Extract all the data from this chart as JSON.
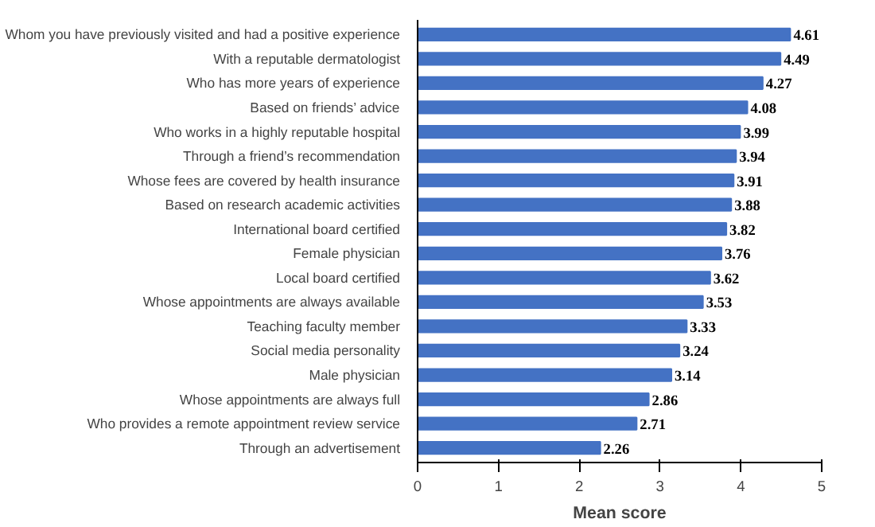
{
  "chart_data": {
    "type": "bar",
    "orientation": "horizontal",
    "xlabel": "Mean score",
    "categories": [
      "Whom you have previously visited and had a positive experience",
      "With a reputable dermatologist",
      "Who has more years of experience",
      "Based on friends’ advice",
      "Who works in a highly reputable hospital",
      "Through a friend’s recommendation",
      "Whose fees are covered by health insurance",
      "Based on research academic activities",
      "International board certified",
      "Female physician",
      "Local board certified",
      "Whose appointments are always available",
      "Teaching faculty member",
      "Social media personality",
      "Male physician",
      "Whose appointments are always full",
      "Who provides a remote appointment review service",
      "Through an advertisement"
    ],
    "values": [
      4.61,
      4.49,
      4.27,
      4.08,
      3.99,
      3.94,
      3.91,
      3.88,
      3.82,
      3.76,
      3.62,
      3.53,
      3.33,
      3.24,
      3.14,
      2.86,
      2.71,
      2.26
    ],
    "color": "#4472c4",
    "xlim": [
      0,
      5
    ],
    "xticks": [
      0,
      1,
      2,
      3,
      4,
      5
    ],
    "data_labels": true,
    "grid": false
  }
}
